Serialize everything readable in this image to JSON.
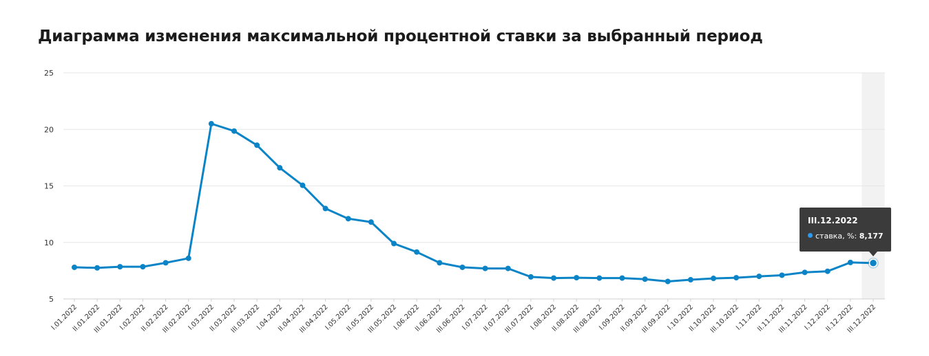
{
  "title": "Диаграмма изменения максимальной процентной ставки за выбранный период",
  "chart_data": {
    "type": "line",
    "title": "Диаграмма изменения максимальной процентной ставки за выбранный период",
    "xlabel": "",
    "ylabel": "",
    "ylim": [
      5,
      25
    ],
    "yticks": [
      5,
      10,
      15,
      20,
      25
    ],
    "grid": true,
    "categories": [
      "I.01.2022",
      "II.01.2022",
      "III.01.2022",
      "I.02.2022",
      "II.02.2022",
      "III.02.2022",
      "I.03.2022",
      "II.03.2022",
      "III.03.2022",
      "I.04.2022",
      "II.04.2022",
      "III.04.2022",
      "I.05.2022",
      "II.05.2022",
      "III.05.2022",
      "I.06.2022",
      "II.06.2022",
      "III.06.2022",
      "I.07.2022",
      "II.07.2022",
      "III.07.2022",
      "I.08.2022",
      "II.08.2022",
      "III.08.2022",
      "I.09.2022",
      "II.09.2022",
      "III.09.2022",
      "I.10.2022",
      "II.10.2022",
      "III.10.2022",
      "I.11.2022",
      "II.11.2022",
      "III.11.2022",
      "I.12.2022",
      "II.12.2022",
      "III.12.2022"
    ],
    "series": [
      {
        "name": "ставка, %",
        "color": "#0a84c6",
        "values": [
          7.8,
          7.75,
          7.85,
          7.85,
          8.2,
          8.6,
          20.5,
          19.85,
          18.6,
          16.6,
          15.05,
          13.0,
          12.1,
          11.8,
          9.9,
          9.15,
          8.2,
          7.8,
          7.7,
          7.7,
          6.95,
          6.85,
          6.88,
          6.85,
          6.85,
          6.75,
          6.55,
          6.7,
          6.82,
          6.88,
          7.0,
          7.1,
          7.35,
          7.45,
          8.23,
          8.177
        ]
      }
    ]
  },
  "tooltip": {
    "date": "III.12.2022",
    "series_label": "ставка, %:",
    "value": "8,177"
  },
  "colors": {
    "line": "#0a84c6",
    "grid": "#e6e6e6",
    "highlight_band": "#f2f2f2",
    "tooltip_bg": "#3b3b3b"
  }
}
